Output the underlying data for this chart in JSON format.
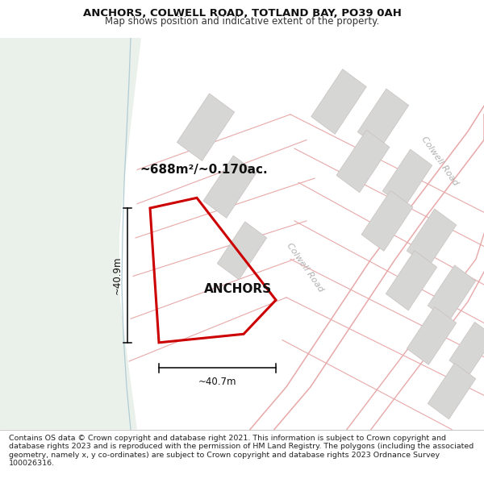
{
  "title_line1": "ANCHORS, COLWELL ROAD, TOTLAND BAY, PO39 0AH",
  "title_line2": "Map shows position and indicative extent of the property.",
  "property_label": "ANCHORS",
  "area_label": "~688m²/~0.170ac.",
  "dim_vertical": "~40.9m",
  "dim_horizontal": "~40.7m",
  "road_label": "Colwell Road",
  "road_label2": "Colwell Road",
  "footer_text": "Contains OS data © Crown copyright and database right 2021. This information is subject to Crown copyright and database rights 2023 and is reproduced with the permission of HM Land Registry. The polygons (including the associated geometry, namely x, y co-ordinates) are subject to Crown copyright and database rights 2023 Ordnance Survey 100026316.",
  "bg_map_color": "#f7f7f5",
  "bg_green_color": "#eaf0ea",
  "building_fill": "#d6d6d4",
  "building_edge": "#c8c0c0",
  "road_line_color": "#e8a8a8",
  "property_outline_color": "#cc0000",
  "water_line_color": "#b0ccd4",
  "road_text_color": "#b0b0b0",
  "title_fontsize": 9.5,
  "subtitle_fontsize": 8.5,
  "footer_fontsize": 6.8
}
